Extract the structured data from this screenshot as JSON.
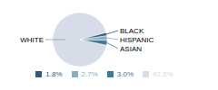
{
  "chart_data": {
    "type": "pie",
    "categories": [
      "WHITE",
      "ASIAN",
      "HISPANIC",
      "BLACK"
    ],
    "values": [
      92.5,
      3.0,
      2.7,
      1.8
    ],
    "value_labels": [
      "92.5%",
      "3.0%",
      "2.7%",
      "1.8%"
    ],
    "colors": [
      "#d6dde8",
      "#3d7a96",
      "#8aaec4",
      "#2e5f7a"
    ],
    "legend": "bottom"
  }
}
